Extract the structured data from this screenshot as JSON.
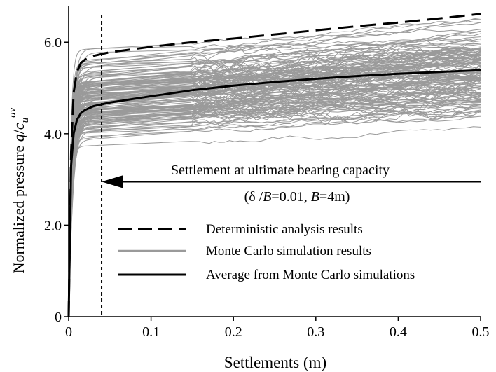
{
  "chart_data": {
    "type": "line",
    "xlabel": "Settlements (m)",
    "ylabel_prefix": "Normalized pressure ",
    "ylabel_q": "q",
    "ylabel_slash": "/",
    "ylabel_c": "c",
    "ylabel_sub": "u",
    "ylabel_sup": "av",
    "xlim": [
      0,
      0.5
    ],
    "ylim": [
      0,
      6.8
    ],
    "xticks": [
      {
        "value": 0,
        "label": "0"
      },
      {
        "value": 0.1,
        "label": "0.1"
      },
      {
        "value": 0.2,
        "label": "0.2"
      },
      {
        "value": 0.3,
        "label": "0.3"
      },
      {
        "value": 0.4,
        "label": "0.4"
      },
      {
        "value": 0.5,
        "label": "0.5"
      }
    ],
    "yticks": [
      {
        "value": 0,
        "label": "0"
      },
      {
        "value": 2.0,
        "label": "2.0"
      },
      {
        "value": 4.0,
        "label": "4.0"
      },
      {
        "value": 6.0,
        "label": "6.0"
      }
    ],
    "grid": false,
    "legend_position": "bottom-left",
    "legend": [
      {
        "label": "Deterministic analysis results",
        "style": "dashed",
        "color": "#000000"
      },
      {
        "label": "Monte Carlo simulation results",
        "style": "solid",
        "color": "#9a9a9a"
      },
      {
        "label": "Average from Monte Carlo simulations",
        "style": "solid",
        "color": "#000000"
      }
    ],
    "annotation": {
      "line1": "Settlement at ultimate bearing capacity",
      "line2_open": "(δ /",
      "line2_b1": "B",
      "line2_mid": "=0.01, ",
      "line2_b2": "B",
      "line2_close": "=4m)",
      "vertical_line_x": 0.04,
      "arrow_y": 2.95,
      "arrow_from_x": 0.5,
      "arrow_to_x": 0.04
    },
    "series": [
      {
        "style": "dashed",
        "color": "#000000",
        "x": [
          0,
          0.003,
          0.006,
          0.01,
          0.015,
          0.02,
          0.03,
          0.05,
          0.1,
          0.15,
          0.2,
          0.25,
          0.3,
          0.35,
          0.4,
          0.45,
          0.5
        ],
        "y": [
          0,
          3.6,
          4.9,
          5.35,
          5.55,
          5.62,
          5.7,
          5.78,
          5.9,
          6.0,
          6.08,
          6.17,
          6.26,
          6.35,
          6.43,
          6.52,
          6.62
        ]
      },
      {
        "style": "solid",
        "color": "#000000",
        "x": [
          0,
          0.003,
          0.006,
          0.01,
          0.015,
          0.02,
          0.03,
          0.05,
          0.1,
          0.15,
          0.2,
          0.25,
          0.3,
          0.35,
          0.4,
          0.45,
          0.5
        ],
        "y": [
          0,
          3.3,
          4.0,
          4.3,
          4.45,
          4.52,
          4.6,
          4.68,
          4.82,
          4.95,
          5.05,
          5.13,
          5.2,
          5.26,
          5.31,
          5.35,
          5.39
        ]
      }
    ],
    "monte_carlo": {
      "color": "#9a9a9a",
      "count": 150,
      "final_min": 3.8,
      "final_max": 6.45,
      "plateau_min": 3.95,
      "plateau_max": 6.45
    }
  }
}
